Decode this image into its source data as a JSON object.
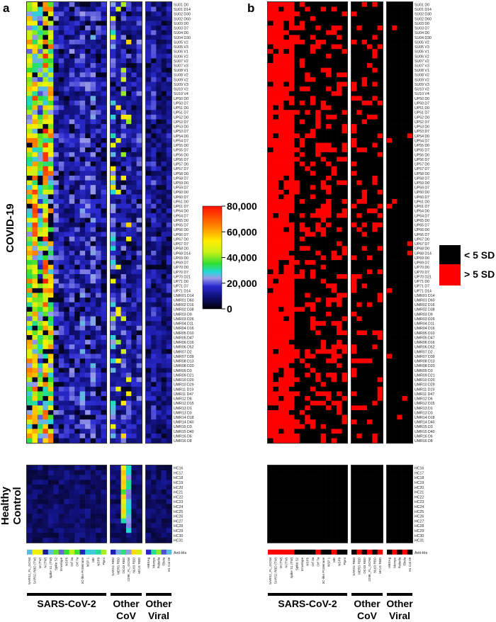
{
  "panels": {
    "a": "a",
    "b": "b"
  },
  "row_groups": {
    "covid": "COVID-19",
    "healthy": "Healthy Control"
  },
  "col_groups": [
    "SARS-CoV-2",
    "Other CoV",
    "Other Viral"
  ],
  "colorbar": {
    "ticks": [
      "80,000",
      "60,000",
      "40,000",
      "20,000",
      "0"
    ]
  },
  "legend": {
    "black": "< 5 SD",
    "red": "> 5 SD"
  },
  "colors": {
    "black": "#000000",
    "red": "#ff0000"
  },
  "chart_data": [
    {
      "panel": "a",
      "type": "heatmap",
      "value_range": [
        0,
        80000
      ],
      "colormap": "jet-like (dark navy at 0 → blue → cyan → green → yellow → orange → red at 80,000)",
      "columns": {
        "SARS-CoV-2": [
          "SARS2_FL_GCN4",
          "SARS2 RBD (TW)",
          "M (TW)",
          "N (TW)",
          "Spike S1 (TW)",
          "Spike S2",
          "Envelope",
          "NSP5",
          "Orf 3a",
          "Orf 7a",
          "3C-like Proteinase",
          "NSP 1",
          "ME",
          "NSP9",
          "Pipro"
        ],
        "Other CoV": [
          "SARS1 RBD",
          "MERS RBD",
          "OC43 RBD",
          "229E_FL_GCN4",
          "NL63 RBD",
          "HKU1 RBD"
        ],
        "Other Viral": [
          "HBSAg",
          "Mumps",
          "Rubella",
          "Ebola",
          "H1 Cal 09"
        ]
      },
      "extra_row": "Anti-His",
      "rows_covid": [
        "SU01 D0",
        "SU01 D14",
        "SU02 D30",
        "SU02 D60",
        "SU03 D0",
        "SU03 D7",
        "SU04 D0",
        "SU04 D30",
        "SU05 V2",
        "SU05 V3",
        "SU06 V1",
        "SU06 V2",
        "SU07 V2",
        "SU07 V3",
        "SU08 V1",
        "SU08 V2",
        "SU09 V2",
        "SU09 V3",
        "SU10 V2",
        "SU10 V4",
        "UP50 D0",
        "UP50 D7",
        "UP51 D0",
        "UP51 D7",
        "UP52 D0",
        "UP52 D7",
        "UP53 D0",
        "UP53 D7",
        "UP54 D0",
        "UP54 D7",
        "UP55 D0",
        "UP55 D7",
        "UP56 D0",
        "UP56 D7",
        "UP57 D0",
        "UP57 D7",
        "UP58 D0",
        "UP58 D7",
        "UP59 D0",
        "UP59 D7",
        "UP60 D0",
        "UP60 D7",
        "UP61 D0",
        "UP61 D7",
        "UP64 D0",
        "UP64 D7",
        "UP65 D0",
        "UP65 D7",
        "UP66 D0",
        "UP66 D7",
        "UP67 D0",
        "UP67 D7",
        "UP68 D0",
        "UP68 D14",
        "UP69 D0",
        "UP69 D7",
        "UP70 D0",
        "UP70 D7",
        "UP70 D21",
        "UP71 D0",
        "UP71 D7",
        "UP71 D14",
        "UMR01 D14",
        "UMR01 D60",
        "UMR02 D16",
        "UMR02 D38",
        "UMR03 D9",
        "UMR03 D26",
        "UMR04 D11",
        "UMR04 D16",
        "UMR05 D10",
        "UMR05 D47",
        "UMR06 D16",
        "UMR06 D52",
        "UMR07 D2",
        "UMR07 D39",
        "UMR08 D13",
        "UMR08 D20",
        "UMR09 D3",
        "UMR09 D21",
        "UMR10 D20",
        "UMR10 D29",
        "UMR11 D19",
        "UMR11 D47",
        "UMR12 D6",
        "UMR12 D15",
        "UMR13 D1",
        "UMR13 D3",
        "UMR14 D18",
        "UMR14 D40",
        "UMR15 D3",
        "UMR15 D40",
        "UMR16 D6",
        "UMR16 D8"
      ],
      "rows_healthy": [
        "HC16",
        "HC17",
        "HC18",
        "HC19",
        "HC20",
        "HC21",
        "HC22",
        "HC23",
        "HC24",
        "HC25",
        "HC26",
        "HC27",
        "HC28",
        "HC29",
        "HC30",
        "HC31"
      ]
    },
    {
      "panel": "b",
      "type": "heatmap",
      "classes": [
        "< 5 SD",
        "> 5 SD"
      ],
      "note": "binary version of panel a: red where signal > 5 SD above healthy control mean"
    }
  ]
}
